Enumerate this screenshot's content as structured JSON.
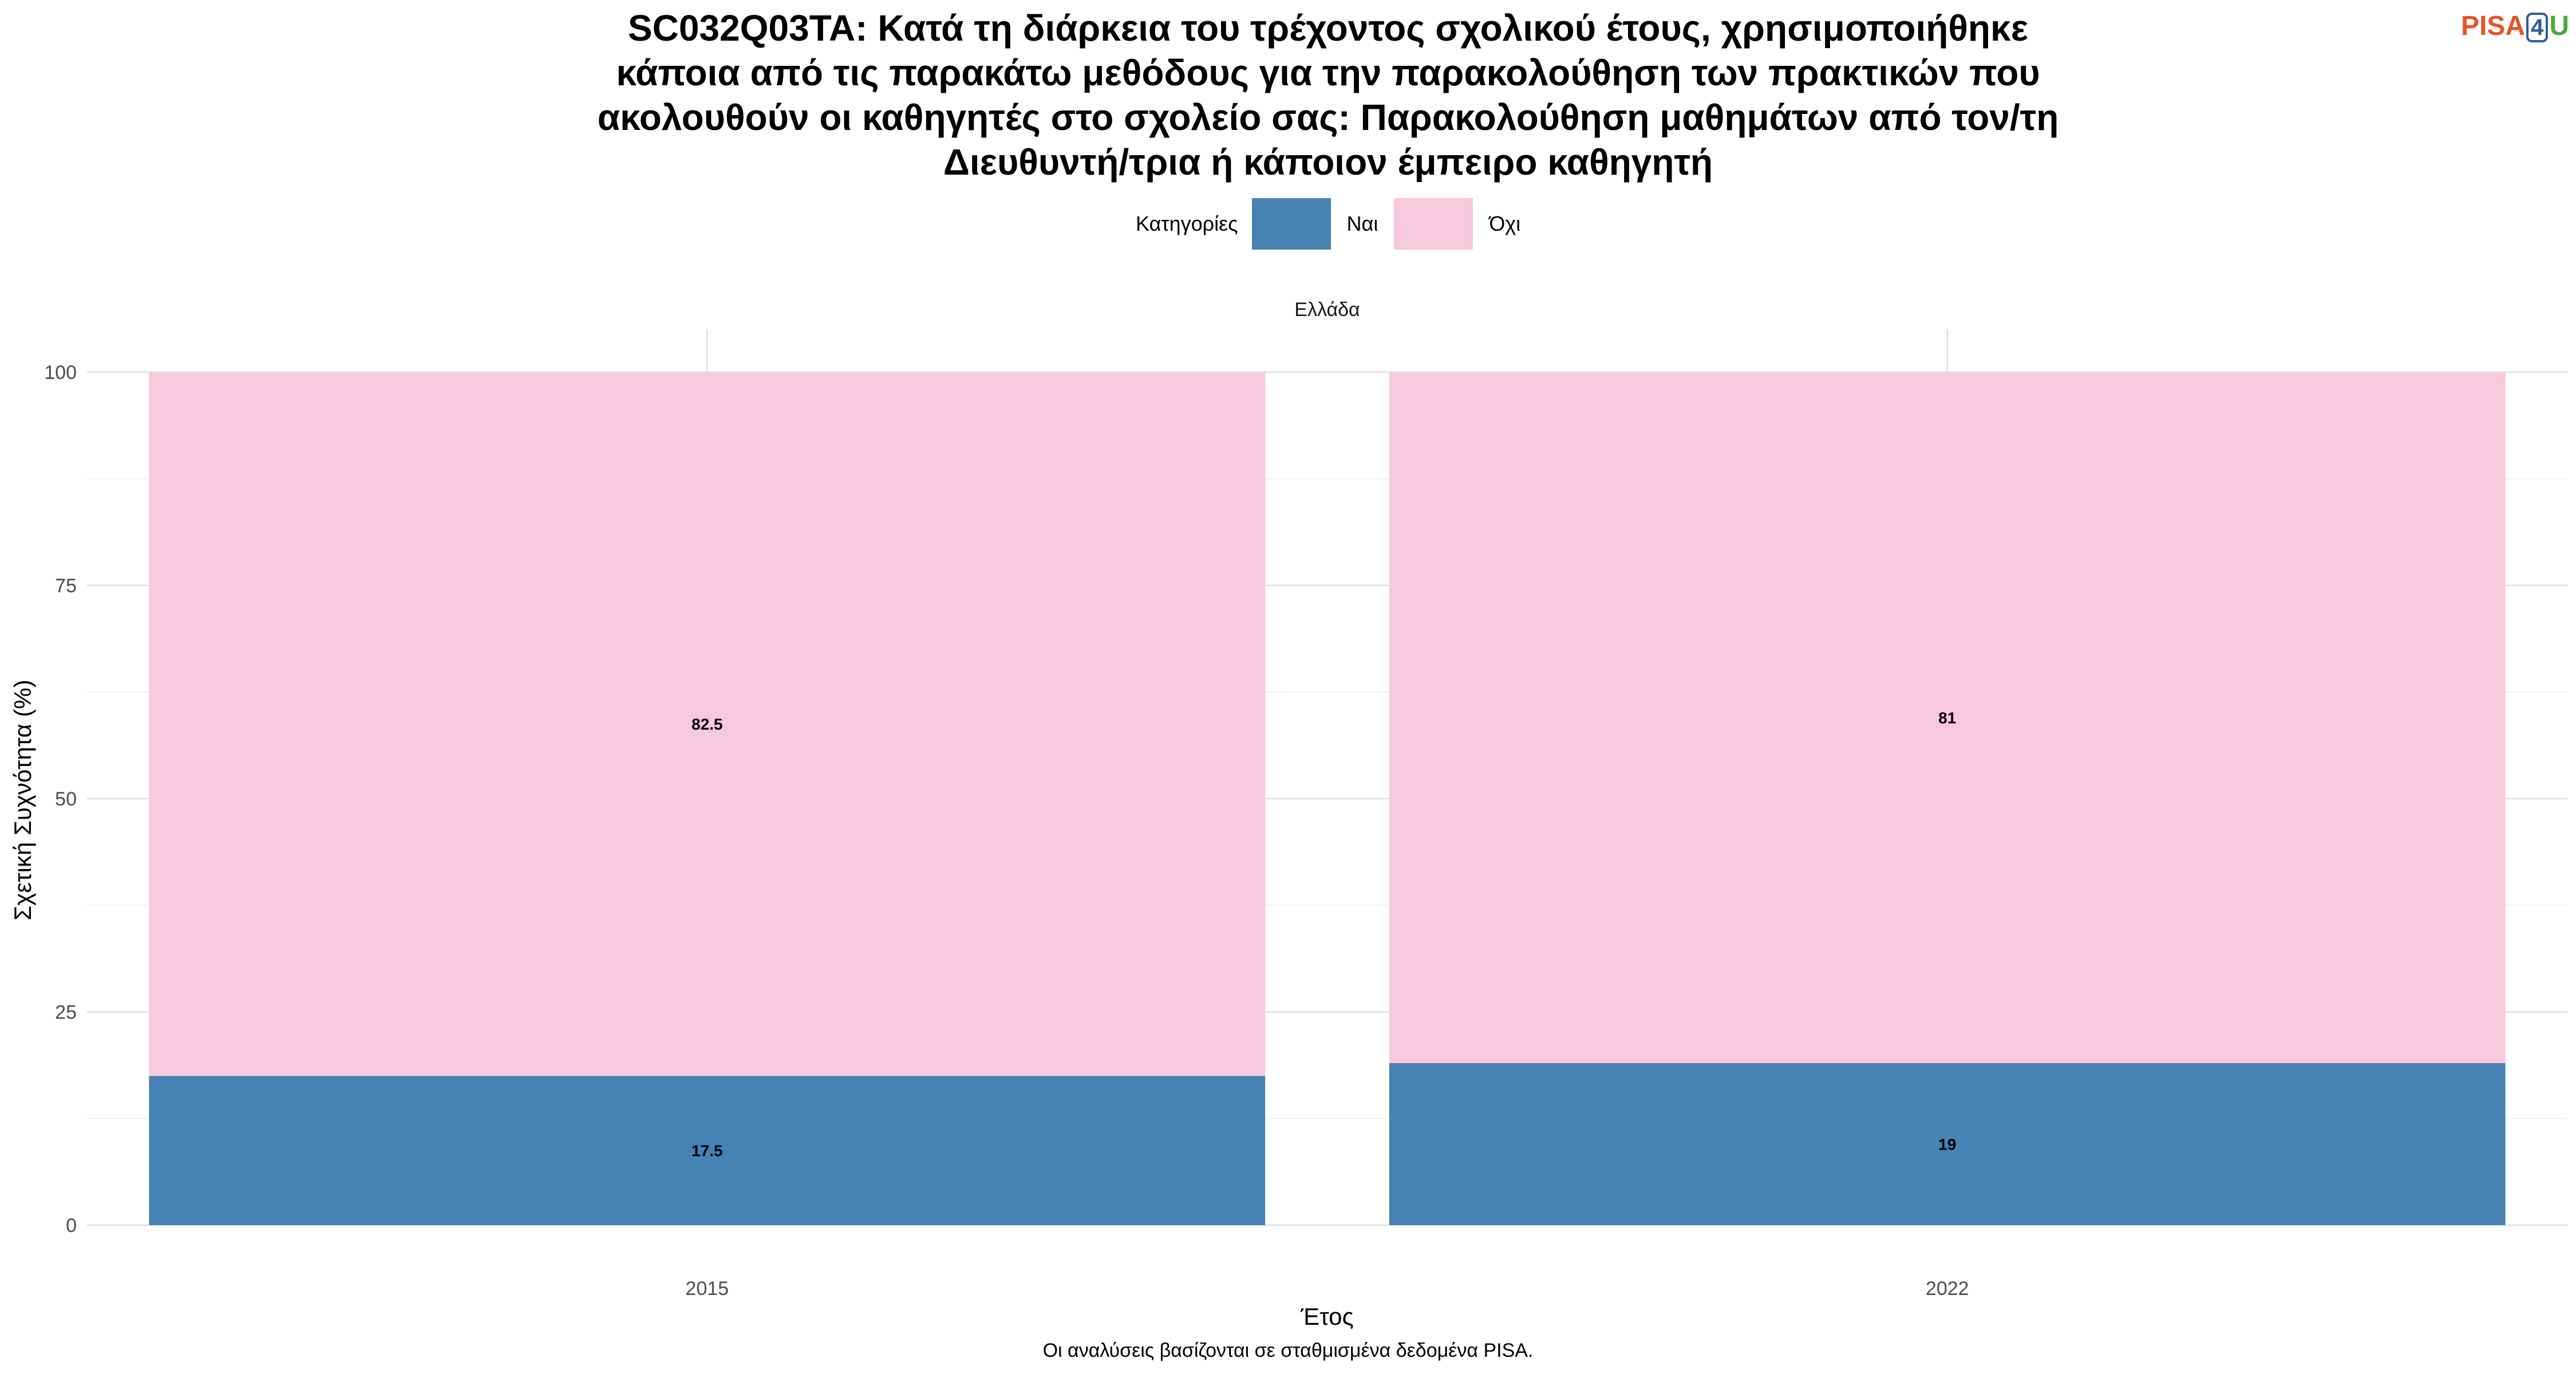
{
  "logo": {
    "pisa": "PISA",
    "four": "4",
    "u": "U"
  },
  "title_lines": [
    "SC032Q03TA: Κατά τη διάρκεια του τρέχοντος σχολικού έτους, χρησιμοποιήθηκε",
    "κάποια από τις παρακάτω μεθόδους για την παρακολούθηση των πρακτικών που",
    "ακολουθούν οι καθηγητές στο σχολείο σας: Παρακολούθηση μαθημάτων από τον/τη",
    "Διευθυντή/τρια ή κάποιον έμπειρο καθηγητή"
  ],
  "legend": {
    "title": "Κατηγορίες",
    "items": [
      {
        "label": "Ναι",
        "color": "#4682B4"
      },
      {
        "label": "Όχι",
        "color": "#F8C8DC"
      }
    ]
  },
  "caption": "Οι αναλύσεις βασίζονται σε σταθμισμένα δεδομένα PISA.",
  "chart_data": {
    "type": "bar",
    "stacked": true,
    "facet": "Ελλάδα",
    "categories": [
      "2015",
      "2022"
    ],
    "series": [
      {
        "name": "Ναι",
        "color": "#4682B4",
        "values": [
          17.5,
          19
        ]
      },
      {
        "name": "Όχι",
        "color": "#F8C8DC",
        "values": [
          82.5,
          81
        ]
      }
    ],
    "data_labels": [
      [
        "17.5",
        "19"
      ],
      [
        "82.5",
        "81"
      ]
    ],
    "xlabel": "Έτος",
    "ylabel": "Σχετική Συχνότητα (%)",
    "ylim": [
      0,
      100
    ],
    "yticks": [
      0,
      25,
      50,
      75,
      100
    ],
    "grid": true,
    "legend_position": "top"
  }
}
